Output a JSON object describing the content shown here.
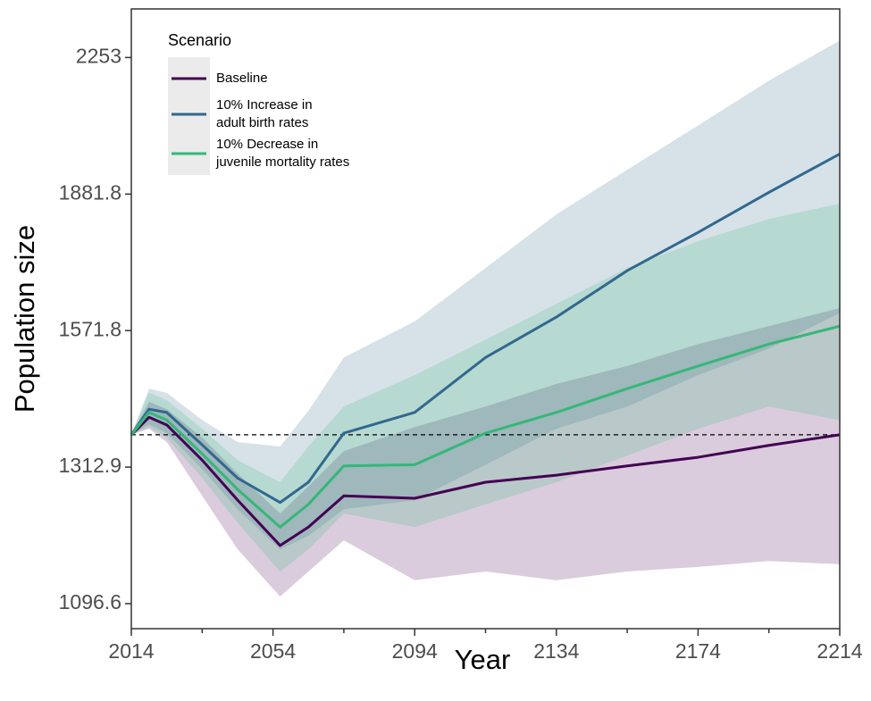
{
  "chart_data": {
    "type": "line",
    "x_label": "Year",
    "y_label": "Population size",
    "legend_title": "Scenario",
    "legend_position": "top-left",
    "log_y": true,
    "xlim": [
      2014,
      2214
    ],
    "xticks": [
      2014,
      2054,
      2094,
      2134,
      2174,
      2214
    ],
    "xticks_minor": [
      2034,
      2074,
      2114,
      2154,
      2194
    ],
    "ylim": [
      1061,
      2402
    ],
    "yticks": [
      1096.6,
      1312.9,
      1571.8,
      1881.8,
      2253
    ],
    "reference_line": 1370,
    "x": [
      2014,
      2019,
      2024,
      2034,
      2044,
      2056,
      2064,
      2074,
      2094,
      2114,
      2134,
      2154,
      2174,
      2194,
      2214
    ],
    "series": [
      {
        "name": "Baseline",
        "color": "#440154",
        "values": [
          1370,
          1402,
          1388,
          1325,
          1257,
          1184,
          1213,
          1264,
          1260,
          1287,
          1299,
          1315,
          1330,
          1351,
          1370
        ],
        "upper": [
          1370,
          1431,
          1417,
          1365,
          1302,
          1235,
          1280,
          1341,
          1384,
          1422,
          1465,
          1500,
          1544,
          1581,
          1619
        ],
        "lower": [
          1370,
          1381,
          1357,
          1264,
          1178,
          1107,
          1144,
          1192,
          1131,
          1144,
          1131,
          1144,
          1151,
          1160,
          1155
        ]
      },
      {
        "name": "10% Increase in\nadult birth rates",
        "color": "#31688e",
        "values": [
          1370,
          1417,
          1411,
          1352,
          1294,
          1253,
          1287,
          1373,
          1411,
          1517,
          1600,
          1701,
          1789,
          1886,
          1984
        ],
        "upper": [
          1370,
          1456,
          1448,
          1397,
          1357,
          1349,
          1414,
          1517,
          1591,
          1707,
          1832,
          1943,
          2060,
          2185,
          2304
        ],
        "lower": [
          1370,
          1389,
          1373,
          1310,
          1242,
          1178,
          1199,
          1242,
          1257,
          1317,
          1381,
          1422,
          1482,
          1535,
          1609
        ]
      },
      {
        "name": "10% Decrease in\njuvenile mortality rates",
        "color": "#35b779",
        "values": [
          1370,
          1411,
          1397,
          1336,
          1275,
          1213,
          1250,
          1315,
          1317,
          1373,
          1411,
          1456,
          1500,
          1544,
          1581
        ],
        "upper": [
          1370,
          1448,
          1434,
          1381,
          1325,
          1287,
          1349,
          1422,
          1482,
          1553,
          1628,
          1707,
          1768,
          1821,
          1858
        ],
        "lower": [
          1370,
          1384,
          1365,
          1294,
          1220,
          1144,
          1178,
          1235,
          1213,
          1250,
          1287,
          1333,
          1381,
          1422,
          1397
        ]
      }
    ]
  }
}
